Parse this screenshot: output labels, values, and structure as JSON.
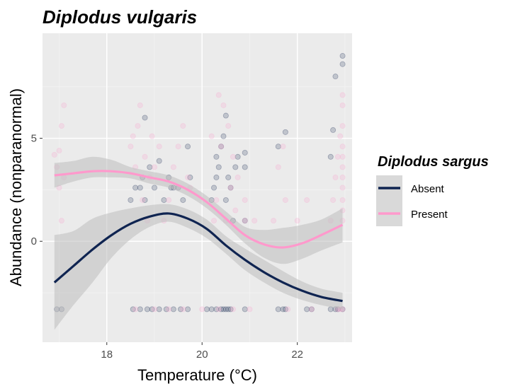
{
  "chart_data": {
    "type": "scatter",
    "title": "Diplodus vulgaris",
    "xlabel": "Temperature (°C)",
    "ylabel": "Abundance (nonparanormal)",
    "xlim": [
      16.65,
      23.15
    ],
    "ylim": [
      -4.9,
      10.1
    ],
    "x_ticks": [
      18,
      20,
      22
    ],
    "y_ticks": [
      0,
      5
    ],
    "grid": true,
    "legend": {
      "title": "Diplodus sargus",
      "position": "right",
      "entries": [
        "Absent",
        "Present"
      ]
    },
    "colors": {
      "panel": "#ebebeb",
      "grid_major": "#ffffff",
      "grid_minor": "#f3f3f3",
      "ribbon": "#bdbdbd",
      "Absent": "#0f2451",
      "Present": "#ff99cc",
      "point_absent": "#2a3a5e",
      "point_present": "#f7a8cf"
    },
    "series": [
      {
        "name": "Absent",
        "fit": {
          "x": [
            16.9,
            17.3,
            17.7,
            18.1,
            18.5,
            18.9,
            19.3,
            19.7,
            20.1,
            20.5,
            20.9,
            21.3,
            21.7,
            22.1,
            22.5,
            22.95
          ],
          "y": [
            -2.0,
            -1.2,
            -0.4,
            0.3,
            0.85,
            1.2,
            1.35,
            1.1,
            0.6,
            -0.2,
            -0.9,
            -1.5,
            -2.0,
            -2.4,
            -2.7,
            -2.9
          ],
          "lower": [
            -4.3,
            -3.1,
            -2.0,
            -0.8,
            0.1,
            0.7,
            0.95,
            0.65,
            0.15,
            -0.6,
            -1.4,
            -2.0,
            -2.5,
            -2.85,
            -3.1,
            -3.3
          ],
          "upper": [
            0.3,
            0.5,
            1.1,
            1.4,
            1.6,
            1.75,
            1.8,
            1.55,
            1.05,
            0.25,
            -0.35,
            -0.9,
            -1.45,
            -1.95,
            -2.3,
            -2.5
          ]
        },
        "points": [
          [
            16.95,
            -3.3
          ],
          [
            17.05,
            -3.3
          ],
          [
            18.55,
            -3.3
          ],
          [
            18.7,
            -3.3
          ],
          [
            18.85,
            -3.3
          ],
          [
            18.95,
            -3.3
          ],
          [
            19.1,
            -3.3
          ],
          [
            19.25,
            -3.3
          ],
          [
            19.4,
            -3.3
          ],
          [
            19.55,
            -3.3
          ],
          [
            19.7,
            -3.3
          ],
          [
            20.1,
            -3.3
          ],
          [
            20.2,
            -3.3
          ],
          [
            20.3,
            -3.3
          ],
          [
            20.4,
            -3.3
          ],
          [
            20.45,
            -3.3
          ],
          [
            20.5,
            -3.3
          ],
          [
            20.55,
            -3.3
          ],
          [
            20.6,
            -3.3
          ],
          [
            20.9,
            -3.3
          ],
          [
            21.6,
            -3.3
          ],
          [
            21.7,
            -3.3
          ],
          [
            21.75,
            -3.3
          ],
          [
            22.2,
            -3.3
          ],
          [
            22.3,
            -3.3
          ],
          [
            22.7,
            -3.3
          ],
          [
            22.8,
            -3.3
          ],
          [
            22.85,
            -3.3
          ],
          [
            22.95,
            -3.3
          ],
          [
            18.5,
            2.0
          ],
          [
            18.6,
            2.6
          ],
          [
            18.7,
            2.6
          ],
          [
            18.75,
            3.1
          ],
          [
            18.8,
            2.0
          ],
          [
            18.9,
            3.6
          ],
          [
            19.0,
            2.6
          ],
          [
            19.1,
            3.9
          ],
          [
            19.2,
            2.0
          ],
          [
            19.3,
            3.1
          ],
          [
            19.35,
            2.6
          ],
          [
            19.5,
            2.6
          ],
          [
            19.6,
            2.0
          ],
          [
            19.7,
            4.6
          ],
          [
            19.75,
            3.1
          ],
          [
            20.2,
            2.0
          ],
          [
            20.25,
            2.6
          ],
          [
            20.3,
            3.1
          ],
          [
            20.3,
            4.1
          ],
          [
            20.35,
            3.6
          ],
          [
            20.4,
            4.6
          ],
          [
            20.45,
            5.1
          ],
          [
            20.5,
            2.0
          ],
          [
            20.5,
            6.1
          ],
          [
            20.55,
            3.1
          ],
          [
            20.6,
            2.6
          ],
          [
            20.65,
            1.0
          ],
          [
            20.7,
            3.6
          ],
          [
            20.75,
            4.1
          ],
          [
            20.9,
            1.0
          ],
          [
            20.9,
            3.6
          ],
          [
            20.9,
            4.3
          ],
          [
            21.6,
            4.6
          ],
          [
            21.75,
            5.3
          ],
          [
            22.7,
            4.1
          ],
          [
            22.75,
            5.4
          ],
          [
            22.8,
            8.0
          ],
          [
            22.95,
            9.0
          ],
          [
            22.95,
            8.6
          ],
          [
            18.8,
            6.0
          ],
          [
            19.4,
            2.6
          ]
        ]
      },
      {
        "name": "Present",
        "fit": {
          "x": [
            16.9,
            17.3,
            17.7,
            18.1,
            18.5,
            18.9,
            19.3,
            19.7,
            20.1,
            20.5,
            20.9,
            21.3,
            21.7,
            22.1,
            22.5,
            22.95
          ],
          "y": [
            3.2,
            3.3,
            3.4,
            3.4,
            3.3,
            3.1,
            2.9,
            2.5,
            1.9,
            1.1,
            0.3,
            -0.15,
            -0.3,
            -0.1,
            0.3,
            0.8
          ],
          "lower": [
            2.6,
            2.9,
            3.1,
            3.1,
            3.05,
            2.8,
            2.6,
            2.2,
            1.6,
            0.8,
            -0.1,
            -0.8,
            -1.1,
            -0.85,
            -0.45,
            -0.05
          ],
          "upper": [
            3.8,
            3.9,
            4.1,
            3.95,
            3.6,
            3.4,
            3.2,
            2.8,
            2.2,
            1.45,
            0.7,
            0.55,
            0.65,
            0.8,
            1.05,
            1.6
          ]
        },
        "points": [
          [
            16.9,
            4.2
          ],
          [
            16.95,
            3.6
          ],
          [
            17.0,
            4.4
          ],
          [
            17.05,
            1.0
          ],
          [
            17.05,
            5.6
          ],
          [
            17.1,
            6.6
          ],
          [
            17.1,
            3.1
          ],
          [
            17.0,
            2.6
          ],
          [
            18.5,
            4.6
          ],
          [
            18.55,
            5.1
          ],
          [
            18.6,
            3.6
          ],
          [
            18.65,
            5.6
          ],
          [
            18.7,
            6.6
          ],
          [
            18.75,
            2.0
          ],
          [
            18.8,
            4.1
          ],
          [
            18.85,
            1.0
          ],
          [
            18.9,
            3.1
          ],
          [
            18.95,
            5.1
          ],
          [
            19.0,
            3.6
          ],
          [
            19.1,
            4.6
          ],
          [
            19.2,
            1.0
          ],
          [
            19.3,
            2.0
          ],
          [
            19.4,
            3.6
          ],
          [
            19.5,
            4.6
          ],
          [
            19.6,
            5.6
          ],
          [
            19.7,
            3.1
          ],
          [
            19.75,
            2.6
          ],
          [
            20.2,
            5.1
          ],
          [
            20.25,
            1.0
          ],
          [
            20.3,
            2.0
          ],
          [
            20.35,
            7.1
          ],
          [
            20.4,
            4.6
          ],
          [
            20.45,
            6.6
          ],
          [
            20.5,
            1.0
          ],
          [
            20.55,
            5.6
          ],
          [
            20.6,
            2.6
          ],
          [
            20.65,
            4.1
          ],
          [
            20.7,
            1.5
          ],
          [
            20.75,
            3.1
          ],
          [
            20.9,
            1.0
          ],
          [
            20.9,
            2.0
          ],
          [
            21.1,
            1.0
          ],
          [
            21.5,
            1.0
          ],
          [
            21.6,
            3.6
          ],
          [
            21.7,
            4.6
          ],
          [
            21.75,
            2.0
          ],
          [
            22.0,
            1.0
          ],
          [
            22.2,
            2.0
          ],
          [
            22.7,
            1.0
          ],
          [
            22.75,
            2.0
          ],
          [
            22.8,
            3.1
          ],
          [
            22.85,
            4.1
          ],
          [
            22.9,
            5.1
          ],
          [
            22.95,
            1.0
          ],
          [
            22.95,
            1.5
          ],
          [
            22.95,
            2.0
          ],
          [
            22.95,
            2.6
          ],
          [
            22.95,
            3.1
          ],
          [
            22.95,
            3.6
          ],
          [
            22.95,
            4.1
          ],
          [
            22.95,
            4.6
          ],
          [
            22.95,
            5.6
          ],
          [
            22.95,
            6.6
          ],
          [
            22.95,
            7.1
          ],
          [
            22.95,
            -3.3
          ],
          [
            22.9,
            -3.3
          ],
          [
            22.85,
            -3.3
          ],
          [
            18.6,
            -3.3
          ],
          [
            19.0,
            -3.3
          ],
          [
            19.3,
            -3.3
          ],
          [
            19.6,
            -3.3
          ],
          [
            20.0,
            -3.3
          ],
          [
            20.35,
            -3.3
          ],
          [
            20.65,
            -3.3
          ],
          [
            21.0,
            -3.3
          ],
          [
            21.8,
            -3.3
          ],
          [
            22.3,
            -3.3
          ]
        ]
      }
    ]
  }
}
